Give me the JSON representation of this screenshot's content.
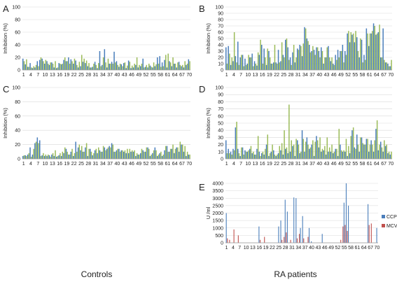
{
  "bottom_labels": [
    "Controls",
    "RA patients"
  ],
  "chart_data": [
    {
      "panel": "A",
      "type": "bar",
      "ylabel": "Inhibition (%)",
      "ylim": [
        0,
        100
      ],
      "yticks": [
        "0",
        "20",
        "40",
        "60",
        "80",
        "100"
      ],
      "xticklabels": [
        "1",
        "4",
        "7",
        "10",
        "13",
        "16",
        "19",
        "22",
        "25",
        "28",
        "31",
        "34",
        "37",
        "40",
        "43",
        "46",
        "49",
        "52",
        "55",
        "58",
        "61",
        "64",
        "67",
        "70"
      ],
      "series": [
        {
          "color": "#4a7ebb",
          "values": [
            18,
            9,
            5,
            11,
            3,
            4,
            14,
            16,
            18,
            10,
            14,
            8,
            12,
            4,
            3,
            11,
            9,
            16,
            14,
            20,
            17,
            10,
            15,
            4,
            6,
            13,
            11,
            6,
            4,
            5,
            13,
            3,
            30,
            8,
            33,
            4,
            10,
            13,
            29,
            14,
            5,
            9,
            11,
            3,
            15,
            3,
            4,
            8,
            4,
            6,
            18,
            5,
            4,
            7,
            4,
            6,
            20,
            22,
            12,
            16,
            4,
            14,
            6,
            10,
            4,
            13,
            6,
            4,
            8,
            17
          ]
        },
        {
          "color": "#9bbb59",
          "values": [
            14,
            17,
            5,
            4,
            6,
            8,
            6,
            20,
            14,
            16,
            10,
            12,
            10,
            14,
            4,
            10,
            10,
            20,
            14,
            10,
            14,
            18,
            8,
            13,
            24,
            18,
            15,
            11,
            4,
            10,
            8,
            11,
            6,
            20,
            12,
            18,
            10,
            10,
            12,
            8,
            10,
            6,
            12,
            7,
            13,
            7,
            10,
            20,
            8,
            10,
            4,
            8,
            10,
            5,
            12,
            9,
            10,
            5,
            6,
            24,
            26,
            12,
            20,
            10,
            12,
            8,
            8,
            14,
            10,
            14
          ]
        }
      ]
    },
    {
      "panel": "B",
      "type": "bar",
      "ylabel": "Inhibition (%)",
      "ylim": [
        0,
        100
      ],
      "yticks": [
        "0",
        "10",
        "20",
        "30",
        "40",
        "50",
        "60",
        "70",
        "80",
        "90",
        "100"
      ],
      "xticklabels": [
        "1",
        "4",
        "7",
        "10",
        "13",
        "16",
        "19",
        "22",
        "25",
        "28",
        "31",
        "34",
        "37",
        "40",
        "43",
        "46",
        "49",
        "52",
        "55",
        "58",
        "61",
        "64",
        "67",
        "70"
      ],
      "series": [
        {
          "color": "#4a7ebb",
          "values": [
            36,
            38,
            8,
            14,
            22,
            45,
            20,
            24,
            18,
            10,
            20,
            26,
            14,
            7,
            24,
            40,
            34,
            8,
            30,
            10,
            12,
            12,
            32,
            14,
            24,
            48,
            36,
            20,
            28,
            12,
            34,
            40,
            22,
            68,
            50,
            40,
            30,
            32,
            36,
            30,
            36,
            10,
            20,
            38,
            14,
            10,
            24,
            32,
            30,
            40,
            30,
            58,
            44,
            56,
            44,
            52,
            20,
            48,
            24,
            66,
            38,
            58,
            74,
            56,
            60,
            20,
            66,
            12,
            10,
            6
          ]
        },
        {
          "color": "#9bbb59",
          "values": [
            10,
            26,
            20,
            60,
            12,
            8,
            24,
            6,
            8,
            24,
            20,
            6,
            10,
            28,
            48,
            10,
            20,
            34,
            20,
            10,
            40,
            10,
            12,
            44,
            20,
            50,
            16,
            8,
            40,
            20,
            32,
            38,
            42,
            66,
            46,
            28,
            38,
            24,
            36,
            20,
            30,
            20,
            36,
            20,
            20,
            8,
            16,
            20,
            30,
            12,
            24,
            62,
            60,
            58,
            62,
            30,
            50,
            12,
            16,
            58,
            58,
            62,
            70,
            58,
            72,
            20,
            16,
            12,
            6,
            16
          ]
        }
      ]
    },
    {
      "panel": "C",
      "type": "bar",
      "ylabel": "Inhibition (%)",
      "ylim": [
        0,
        100
      ],
      "yticks": [
        "0",
        "20",
        "40",
        "60",
        "80",
        "100"
      ],
      "xticklabels": [
        "1",
        "4",
        "7",
        "10",
        "13",
        "16",
        "19",
        "22",
        "25",
        "28",
        "31",
        "34",
        "37",
        "40",
        "43",
        "46",
        "49",
        "52",
        "55",
        "58",
        "61",
        "64",
        "67",
        "70"
      ],
      "series": [
        {
          "color": "#4a7ebb",
          "values": [
            4,
            5,
            6,
            16,
            6,
            22,
            30,
            26,
            5,
            4,
            4,
            5,
            6,
            4,
            3,
            5,
            4,
            8,
            14,
            6,
            10,
            4,
            24,
            16,
            12,
            10,
            16,
            4,
            14,
            5,
            12,
            8,
            12,
            10,
            16,
            14,
            18,
            22,
            10,
            12,
            14,
            12,
            10,
            8,
            8,
            10,
            10,
            4,
            6,
            8,
            12,
            10,
            16,
            4,
            8,
            16,
            4,
            8,
            4,
            12,
            18,
            10,
            14,
            8,
            16,
            10,
            20,
            10,
            4,
            6
          ]
        },
        {
          "color": "#9bbb59",
          "values": [
            5,
            4,
            8,
            3,
            14,
            24,
            22,
            4,
            8,
            6,
            6,
            3,
            8,
            12,
            4,
            8,
            10,
            16,
            10,
            6,
            14,
            8,
            10,
            20,
            18,
            10,
            22,
            14,
            10,
            8,
            14,
            16,
            10,
            18,
            12,
            16,
            16,
            20,
            10,
            14,
            10,
            12,
            12,
            14,
            14,
            12,
            12,
            8,
            6,
            14,
            10,
            16,
            14,
            6,
            12,
            12,
            6,
            10,
            6,
            18,
            10,
            14,
            20,
            14,
            16,
            24,
            20,
            18,
            10,
            6
          ]
        }
      ]
    },
    {
      "panel": "D",
      "type": "bar",
      "ylabel": "Inhibition (%)",
      "ylim": [
        0,
        100
      ],
      "yticks": [
        "0",
        "10",
        "20",
        "30",
        "40",
        "50",
        "60",
        "70",
        "80",
        "90",
        "100"
      ],
      "xticklabels": [
        "1",
        "4",
        "7",
        "10",
        "13",
        "16",
        "19",
        "22",
        "25",
        "28",
        "31",
        "34",
        "37",
        "40",
        "43",
        "46",
        "49",
        "52",
        "55",
        "58",
        "61",
        "64",
        "67",
        "70"
      ],
      "series": [
        {
          "color": "#4a7ebb",
          "values": [
            26,
            14,
            10,
            14,
            44,
            14,
            4,
            16,
            12,
            10,
            14,
            8,
            6,
            14,
            10,
            8,
            6,
            20,
            4,
            10,
            12,
            4,
            8,
            12,
            6,
            14,
            8,
            10,
            18,
            4,
            26,
            8,
            40,
            10,
            30,
            14,
            20,
            4,
            32,
            16,
            10,
            12,
            6,
            10,
            10,
            8,
            14,
            4,
            20,
            10,
            10,
            4,
            8,
            40,
            16,
            34,
            10,
            30,
            20,
            28,
            10,
            26,
            10,
            42,
            12,
            24,
            10,
            18,
            8,
            6
          ]
        },
        {
          "color": "#9bbb59",
          "values": [
            8,
            8,
            6,
            12,
            52,
            8,
            16,
            6,
            10,
            12,
            18,
            10,
            6,
            32,
            4,
            10,
            14,
            34,
            8,
            20,
            6,
            6,
            18,
            22,
            40,
            16,
            76,
            26,
            20,
            28,
            20,
            10,
            28,
            24,
            20,
            16,
            26,
            24,
            26,
            30,
            14,
            18,
            30,
            16,
            20,
            10,
            14,
            42,
            12,
            12,
            28,
            18,
            32,
            44,
            14,
            20,
            30,
            22,
            20,
            28,
            20,
            20,
            26,
            54,
            20,
            16,
            26,
            20,
            10,
            10
          ]
        }
      ]
    },
    {
      "panel": "E",
      "type": "bar",
      "ylabel": "U /ml",
      "ylim": [
        0,
        4000
      ],
      "yticks": [
        "0",
        "500",
        "1000",
        "1500",
        "2000",
        "2500",
        "3000",
        "3500",
        "4000"
      ],
      "xticklabels": [
        "1",
        "4",
        "7",
        "10",
        "13",
        "16",
        "19",
        "22",
        "25",
        "28",
        "31",
        "34",
        "37",
        "40",
        "43",
        "46",
        "49",
        "52",
        "55",
        "58",
        "61",
        "64",
        "67",
        "70"
      ],
      "legend": [
        "CCP",
        "MCV"
      ],
      "series": [
        {
          "name": "CCP",
          "color": "#4a7ebb",
          "values": [
            2000,
            0,
            0,
            0,
            0,
            0,
            0,
            0,
            0,
            0,
            0,
            0,
            0,
            0,
            0,
            1100,
            0,
            0,
            0,
            0,
            0,
            0,
            0,
            0,
            1100,
            1500,
            0,
            2900,
            2100,
            0,
            0,
            3050,
            3000,
            0,
            1000,
            1800,
            0,
            0,
            1000,
            100,
            0,
            0,
            0,
            0,
            600,
            0,
            0,
            0,
            0,
            0,
            0,
            0,
            0,
            0,
            2700,
            4000,
            2500,
            0,
            0,
            0,
            0,
            0,
            0,
            0,
            0,
            2600,
            0,
            0,
            0,
            1000
          ]
        },
        {
          "name": "MCV",
          "color": "#c0504d",
          "values": [
            300,
            200,
            0,
            900,
            0,
            500,
            0,
            0,
            0,
            0,
            0,
            0,
            0,
            0,
            0,
            200,
            0,
            400,
            0,
            0,
            0,
            0,
            0,
            0,
            0,
            200,
            400,
            700,
            0,
            200,
            0,
            0,
            300,
            600,
            0,
            300,
            0,
            400,
            0,
            0,
            0,
            0,
            0,
            0,
            0,
            0,
            0,
            0,
            0,
            0,
            0,
            0,
            200,
            1100,
            1200,
            800,
            0,
            0,
            0,
            0,
            0,
            0,
            0,
            0,
            0,
            1200,
            1300,
            0,
            0,
            0
          ]
        }
      ]
    }
  ]
}
